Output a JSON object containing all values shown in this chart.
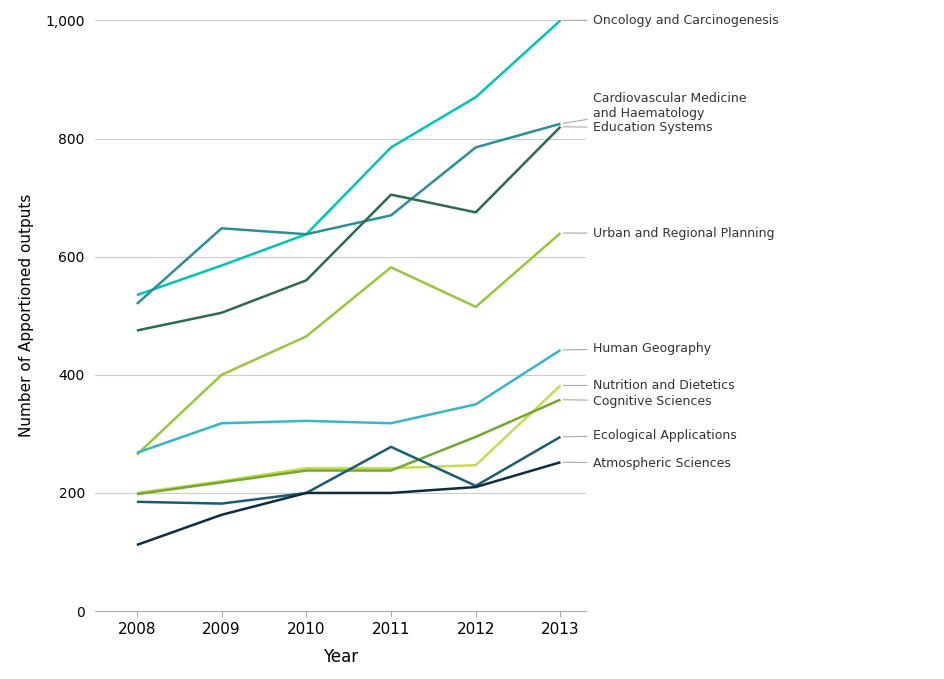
{
  "years": [
    2008,
    2009,
    2010,
    2011,
    2012,
    2013
  ],
  "series": [
    {
      "label": "Oncology and Carcinogenesis",
      "color": "#00C5B5",
      "values": [
        535,
        585,
        638,
        785,
        870,
        1000
      ],
      "lw": 1.8
    },
    {
      "label": "Cardiovascular Medicine\nand Haematology",
      "color": "#2B8F9A",
      "values": [
        520,
        648,
        638,
        670,
        785,
        825
      ],
      "lw": 1.8
    },
    {
      "label": "Education Systems",
      "color": "#2D6B4F",
      "values": [
        475,
        505,
        560,
        705,
        675,
        820
      ],
      "lw": 1.8
    },
    {
      "label": "Urban and Regional Planning",
      "color": "#96C83C",
      "values": [
        265,
        400,
        465,
        582,
        515,
        640
      ],
      "lw": 1.8
    },
    {
      "label": "Human Geography",
      "color": "#38B6C8",
      "values": [
        268,
        318,
        322,
        318,
        350,
        442
      ],
      "lw": 1.8
    },
    {
      "label": "Nutrition and Dietetics",
      "color": "#C8DC50",
      "values": [
        200,
        220,
        242,
        242,
        247,
        382
      ],
      "lw": 1.8
    },
    {
      "label": "Cognitive Sciences",
      "color": "#72A832",
      "values": [
        198,
        218,
        238,
        238,
        295,
        358
      ],
      "lw": 1.8
    },
    {
      "label": "Ecological Applications",
      "color": "#1A5C70",
      "values": [
        185,
        182,
        200,
        278,
        212,
        295
      ],
      "lw": 1.8
    },
    {
      "label": "Atmospheric Sciences",
      "color": "#0D2B45",
      "values": [
        112,
        163,
        200,
        200,
        210,
        252
      ],
      "lw": 1.8
    }
  ],
  "xlabel": "Year",
  "ylabel": "Number of Apportioned outputs",
  "ylim": [
    0,
    1000
  ],
  "yticks": [
    0,
    200,
    400,
    600,
    800,
    1000
  ],
  "background_color": "#ffffff",
  "grid_color": "#cccccc",
  "label_y_positions": [
    1000,
    855,
    818,
    640,
    445,
    382,
    355,
    298,
    250
  ]
}
